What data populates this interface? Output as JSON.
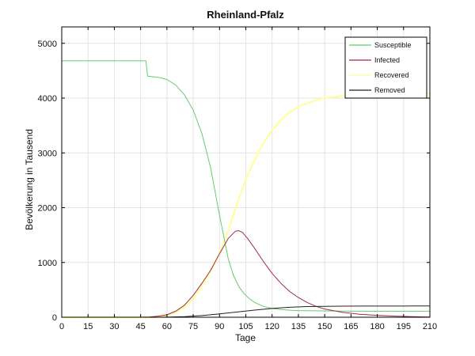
{
  "chart_data": {
    "type": "line",
    "title": "Rheinland-Pfalz",
    "xlabel": "Tage",
    "ylabel": "Bevölkerung in Tausend",
    "xlim": [
      0,
      210
    ],
    "ylim": [
      0,
      5300
    ],
    "xticks": [
      "0",
      "15",
      "30",
      "45",
      "60",
      "75",
      "90",
      "105",
      "120",
      "135",
      "150",
      "165",
      "180",
      "195",
      "210"
    ],
    "xtick_values": [
      0,
      15,
      30,
      45,
      60,
      75,
      90,
      105,
      120,
      135,
      150,
      165,
      180,
      195,
      210
    ],
    "yticks": [
      "0",
      "1000",
      "2000",
      "3000",
      "4000",
      "5000"
    ],
    "ytick_values": [
      0,
      1000,
      2000,
      3000,
      4000,
      5000
    ],
    "grid": true,
    "legend_position": "top-right",
    "series": [
      {
        "name": "Susceptible",
        "color": "#66cc66",
        "x": [
          0,
          48,
          49,
          55,
          60,
          65,
          70,
          75,
          80,
          85,
          90,
          95,
          98,
          101,
          104,
          107,
          110,
          115,
          120,
          125,
          130,
          135,
          140,
          150,
          160,
          170,
          180,
          190,
          200,
          210
        ],
        "y": [
          4680,
          4680,
          4400,
          4380,
          4340,
          4240,
          4060,
          3780,
          3350,
          2720,
          1860,
          1060,
          760,
          560,
          430,
          340,
          270,
          200,
          160,
          140,
          128,
          120,
          118,
          115,
          112,
          110,
          110,
          110,
          110,
          110
        ]
      },
      {
        "name": "Infected",
        "color": "#a3294a",
        "x": [
          0,
          45,
          50,
          55,
          60,
          65,
          70,
          75,
          80,
          85,
          90,
          95,
          99,
          101,
          103,
          106,
          110,
          115,
          120,
          125,
          130,
          135,
          140,
          145,
          150,
          160,
          170,
          180,
          190,
          200,
          210
        ],
        "y": [
          0,
          0,
          5,
          20,
          45,
          110,
          220,
          400,
          620,
          860,
          1160,
          1440,
          1570,
          1580,
          1550,
          1440,
          1260,
          1020,
          800,
          620,
          470,
          360,
          270,
          200,
          150,
          90,
          55,
          35,
          20,
          10,
          5
        ]
      },
      {
        "name": "Recovered",
        "color": "#ffff99",
        "x": [
          0,
          55,
          60,
          65,
          70,
          75,
          80,
          85,
          90,
          95,
          100,
          105,
          110,
          115,
          120,
          125,
          130,
          135,
          140,
          145,
          150,
          160,
          170,
          180,
          190,
          200,
          210
        ],
        "y": [
          0,
          0,
          30,
          90,
          180,
          340,
          570,
          830,
          1180,
          1590,
          2070,
          2520,
          2870,
          3180,
          3410,
          3600,
          3740,
          3840,
          3910,
          3960,
          4000,
          4040,
          4060,
          4070,
          4080,
          4085,
          4090
        ]
      },
      {
        "name": "Removed",
        "color": "#222222",
        "x": [
          0,
          55,
          60,
          70,
          80,
          90,
          100,
          110,
          120,
          130,
          140,
          150,
          160,
          170,
          180,
          190,
          200,
          210
        ],
        "y": [
          0,
          0,
          2,
          10,
          30,
          60,
          95,
          130,
          160,
          182,
          195,
          200,
          202,
          203,
          204,
          204,
          205,
          205
        ]
      }
    ]
  }
}
